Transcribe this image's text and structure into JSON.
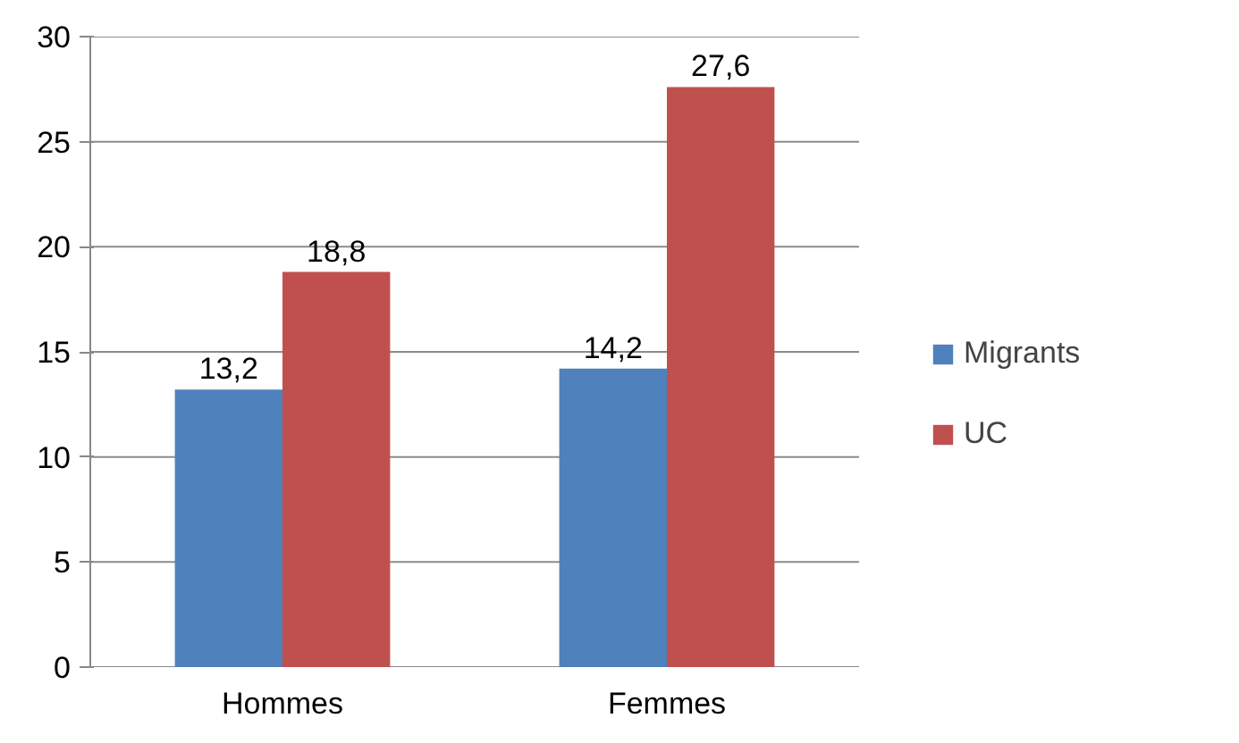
{
  "chart_data": {
    "type": "bar",
    "categories": [
      "Hommes",
      "Femmes"
    ],
    "series": [
      {
        "name": "Migrants",
        "color": "#4f81bd",
        "values": [
          13.2,
          14.2
        ],
        "value_labels": [
          "13,2",
          "14,2"
        ]
      },
      {
        "name": "UC",
        "color": "#c0504d",
        "values": [
          18.8,
          27.6
        ],
        "value_labels": [
          "18,8",
          "27,6"
        ]
      }
    ],
    "ylim": [
      0,
      30
    ],
    "yticks": [
      0,
      5,
      10,
      15,
      20,
      25,
      30
    ],
    "grid": "y",
    "legend": "right"
  }
}
